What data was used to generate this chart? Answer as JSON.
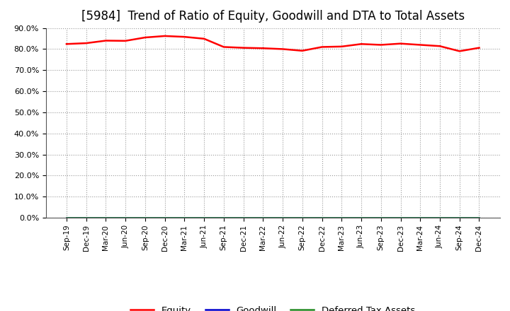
{
  "title": "[5984]  Trend of Ratio of Equity, Goodwill and DTA to Total Assets",
  "title_fontsize": 12,
  "ylim": [
    0.0,
    0.9
  ],
  "yticks": [
    0.0,
    0.1,
    0.2,
    0.3,
    0.4,
    0.5,
    0.6,
    0.7,
    0.8,
    0.9
  ],
  "background_color": "#ffffff",
  "plot_bg_color": "#ffffff",
  "x_labels": [
    "Sep-19",
    "Dec-19",
    "Mar-20",
    "Jun-20",
    "Sep-20",
    "Dec-20",
    "Mar-21",
    "Jun-21",
    "Sep-21",
    "Dec-21",
    "Mar-22",
    "Jun-22",
    "Sep-22",
    "Dec-22",
    "Mar-23",
    "Jun-23",
    "Sep-23",
    "Dec-23",
    "Mar-24",
    "Jun-24",
    "Sep-24",
    "Dec-24"
  ],
  "equity": [
    0.824,
    0.828,
    0.84,
    0.839,
    0.855,
    0.862,
    0.858,
    0.849,
    0.81,
    0.806,
    0.804,
    0.8,
    0.792,
    0.81,
    0.812,
    0.824,
    0.82,
    0.826,
    0.82,
    0.814,
    0.79,
    0.806
  ],
  "goodwill": [
    0.0,
    0.0,
    0.0,
    0.0,
    0.0,
    0.0,
    0.0,
    0.0,
    0.0,
    0.0,
    0.0,
    0.0,
    0.0,
    0.0,
    0.0,
    0.0,
    0.0,
    0.0,
    0.0,
    0.0,
    0.0,
    0.0
  ],
  "dta": [
    0.0,
    0.0,
    0.0,
    0.0,
    0.0,
    0.0,
    0.0,
    0.0,
    0.0,
    0.0,
    0.0,
    0.0,
    0.0,
    0.0,
    0.0,
    0.0,
    0.0,
    0.0,
    0.0,
    0.0,
    0.0,
    0.0
  ],
  "equity_color": "#ff0000",
  "goodwill_color": "#0000cd",
  "dta_color": "#228b22",
  "line_width": 1.8,
  "grid_color": "#999999",
  "legend_labels": [
    "Equity",
    "Goodwill",
    "Deferred Tax Assets"
  ]
}
